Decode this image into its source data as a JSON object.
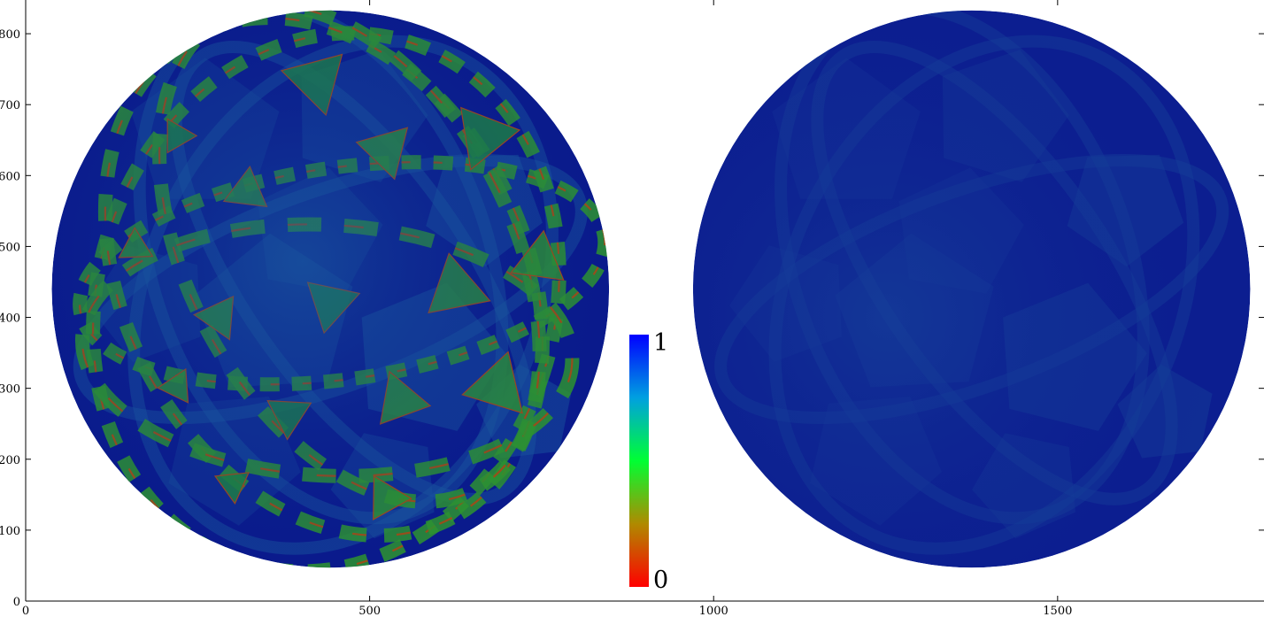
{
  "chart_data": {
    "type": "heatmap",
    "title": "",
    "xlabel": "",
    "ylabel": "",
    "xlim": [
      0,
      1800
    ],
    "ylim": [
      0,
      870
    ],
    "xticks": [
      0,
      500,
      1000,
      1500
    ],
    "xtick_labels": [
      "0",
      "500",
      "1000",
      "1500"
    ],
    "yticks": [
      0,
      100,
      200,
      300,
      400,
      500,
      600,
      700,
      800
    ],
    "ytick_labels": [
      "0",
      "100",
      "200",
      "300",
      "400",
      "500",
      "600",
      "700",
      "800"
    ],
    "colormap": [
      "#ff0000",
      "#b08a00",
      "#00ff33",
      "#00a0e0",
      "#0000ff"
    ],
    "colorbar": {
      "min": 0,
      "max": 1,
      "min_label": "0",
      "max_label": "1"
    },
    "spheres": [
      {
        "name": "",
        "center": [
          443,
          440
        ],
        "radius": 405,
        "base_color": "#0a1a8c",
        "highlight_color": "#1a5aa0",
        "band_color": "#2f9a2a",
        "edge_color": "#b04a10"
      },
      {
        "name": "",
        "center": [
          1375,
          440
        ],
        "radius": 405,
        "base_color": "#0c1e90",
        "highlight_color": "#16409a",
        "band_color": "",
        "edge_color": ""
      }
    ],
    "grid": false,
    "legend": "none"
  }
}
